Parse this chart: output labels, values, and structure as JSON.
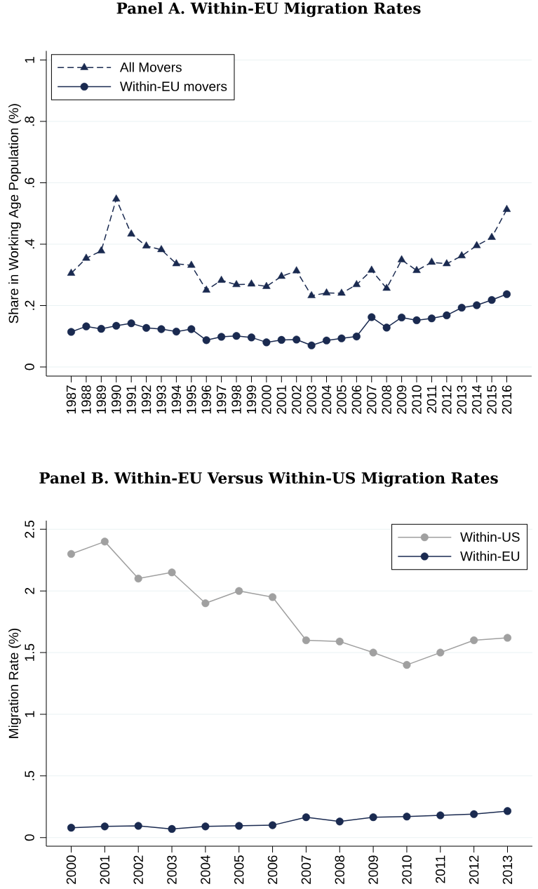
{
  "chart_data": [
    {
      "type": "line",
      "title": "Panel A. Within-EU Migration Rates",
      "ylabel": "Share in Working Age Population (%)",
      "categories": [
        "1987",
        "1988",
        "1989",
        "1990",
        "1991",
        "1992",
        "1993",
        "1994",
        "1995",
        "1996",
        "1997",
        "1998",
        "1999",
        "2000",
        "2001",
        "2002",
        "2003",
        "2004",
        "2005",
        "2006",
        "2007",
        "2008",
        "2009",
        "2010",
        "2011",
        "2012",
        "2013",
        "2014",
        "2015",
        "2016"
      ],
      "series": [
        {
          "name": "All Movers",
          "color": "#1a2a50",
          "marker": "triangle",
          "line_style": "dashed",
          "values": [
            0.305,
            0.354,
            0.378,
            0.547,
            0.433,
            0.394,
            0.382,
            0.336,
            0.331,
            0.25,
            0.282,
            0.268,
            0.27,
            0.262,
            0.295,
            0.313,
            0.232,
            0.241,
            0.24,
            0.268,
            0.315,
            0.256,
            0.349,
            0.314,
            0.341,
            0.336,
            0.362,
            0.395,
            0.422,
            0.513
          ]
        },
        {
          "name": "Within-EU movers",
          "color": "#1a2a50",
          "marker": "circle",
          "line_style": "solid",
          "values": [
            0.114,
            0.132,
            0.124,
            0.134,
            0.142,
            0.127,
            0.123,
            0.115,
            0.123,
            0.087,
            0.098,
            0.101,
            0.096,
            0.08,
            0.088,
            0.089,
            0.07,
            0.086,
            0.093,
            0.099,
            0.162,
            0.128,
            0.161,
            0.152,
            0.158,
            0.168,
            0.193,
            0.201,
            0.218,
            0.237
          ]
        }
      ],
      "ylim": [
        -0.03,
        1.03
      ],
      "yticks": [
        0,
        {
          "value": 0.2,
          "label": ".2"
        },
        {
          "value": 0.4,
          "label": ".4"
        },
        {
          "value": 0.6,
          "label": ".6"
        },
        {
          "value": 0.8,
          "label": ".8"
        },
        1
      ],
      "grid": "y",
      "legend": "top left"
    },
    {
      "type": "line",
      "title": "Panel B. Within-EU Versus Within-US Migration Rates",
      "ylabel": "Migration Rate (%)",
      "categories": [
        "2000",
        "2001",
        "2002",
        "2003",
        "2004",
        "2005",
        "2006",
        "2007",
        "2008",
        "2009",
        "2010",
        "2011",
        "2012",
        "2013"
      ],
      "series": [
        {
          "name": "Within-US",
          "color": "#a0a0a0",
          "values": [
            2.3,
            2.4,
            2.1,
            2.15,
            1.9,
            2.0,
            1.95,
            1.6,
            1.59,
            1.5,
            1.4,
            1.5,
            1.6,
            1.62
          ]
        },
        {
          "name": "Within-EU",
          "color": "#1a2a50",
          "values": [
            0.08,
            0.09,
            0.095,
            0.07,
            0.09,
            0.095,
            0.1,
            0.165,
            0.13,
            0.165,
            0.17,
            0.18,
            0.19,
            0.215
          ]
        }
      ],
      "marker": "circle",
      "line_style": "solid",
      "ylim": [
        -0.07,
        2.57
      ],
      "yticks": [
        0,
        {
          "value": 0.5,
          "label": ".5"
        },
        1,
        1.5,
        2,
        2.5
      ],
      "grid": "y",
      "legend": "top right"
    }
  ]
}
